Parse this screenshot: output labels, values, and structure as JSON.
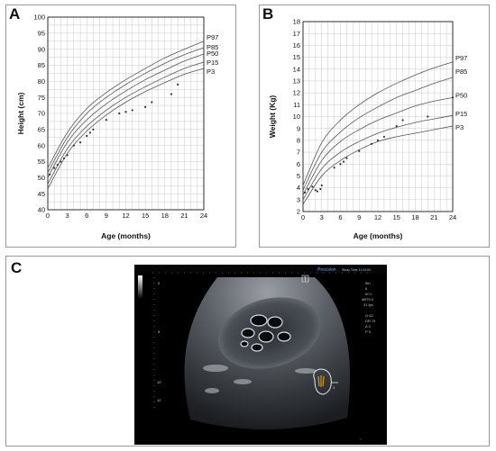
{
  "panels": [
    {
      "letter": "A"
    },
    {
      "letter": "B"
    },
    {
      "letter": "C"
    }
  ],
  "colors": {
    "grid": "#c8c8c8",
    "curve": "#555555",
    "points": "#333333",
    "axis": "#000000",
    "ultrasound_bg": "#000000"
  },
  "chart_data": [
    {
      "type": "line",
      "xlabel": "Age (months)",
      "ylabel": "Height (cm)",
      "xlim": [
        0,
        24
      ],
      "ylim": [
        40,
        100
      ],
      "x_ticks": [
        0,
        3,
        6,
        9,
        12,
        15,
        18,
        21,
        24
      ],
      "y_ticks": [
        40,
        45,
        50,
        55,
        60,
        65,
        70,
        75,
        80,
        85,
        90,
        95,
        100
      ],
      "grid": true,
      "x": [
        0,
        3,
        6,
        9,
        12,
        15,
        18,
        21,
        24
      ],
      "series": [
        {
          "name": "P97",
          "values": [
            53,
            64,
            71.5,
            76.5,
            80.5,
            84,
            87.3,
            90,
            92.5
          ]
        },
        {
          "name": "P85",
          "values": [
            51.5,
            62.5,
            70,
            75,
            79,
            82.5,
            85.6,
            88.3,
            90.5
          ]
        },
        {
          "name": "P50",
          "values": [
            50,
            61,
            68,
            73,
            77,
            80.5,
            83.5,
            86.3,
            88.5
          ]
        },
        {
          "name": "P15",
          "values": [
            48,
            59,
            66,
            71,
            75,
            78.3,
            81.3,
            84,
            86
          ]
        },
        {
          "name": "P3",
          "values": [
            46.5,
            57.5,
            64.5,
            69.5,
            73.5,
            76.8,
            79.6,
            82.2,
            84
          ]
        }
      ],
      "points": {
        "x": [
          0.3,
          1,
          1.5,
          2,
          2.5,
          3,
          4,
          5,
          6,
          6.5,
          7,
          9,
          11,
          12,
          13,
          15,
          16,
          19,
          20
        ],
        "y": [
          51,
          53,
          54,
          55,
          56,
          57,
          60,
          61,
          63,
          64,
          65,
          68,
          70,
          70.5,
          71,
          72,
          73.5,
          76,
          79
        ]
      }
    },
    {
      "type": "line",
      "xlabel": "Age (months)",
      "ylabel": "Weight (Kg)",
      "xlim": [
        0,
        24
      ],
      "ylim": [
        2,
        18
      ],
      "x_ticks": [
        0,
        3,
        6,
        9,
        12,
        15,
        18,
        21,
        24
      ],
      "y_ticks": [
        2,
        3,
        4,
        5,
        6,
        7,
        8,
        9,
        10,
        11,
        12,
        13,
        14,
        15,
        16,
        17,
        18
      ],
      "grid": true,
      "x": [
        0,
        3,
        6,
        9,
        12,
        15,
        18,
        21,
        24
      ],
      "series": [
        {
          "name": "P97",
          "values": [
            4.2,
            7.8,
            9.7,
            11,
            12,
            12.8,
            13.5,
            14.1,
            14.6
          ]
        },
        {
          "name": "P85",
          "values": [
            3.8,
            7,
            8.7,
            9.9,
            10.8,
            11.6,
            12.2,
            12.8,
            13.3
          ]
        },
        {
          "name": "P50",
          "values": [
            3.4,
            6.3,
            7.9,
            8.9,
            9.7,
            10.3,
            10.9,
            11.3,
            11.6
          ]
        },
        {
          "name": "P15",
          "values": [
            3,
            5.6,
            7,
            7.9,
            8.6,
            9.1,
            9.5,
            9.8,
            10.1
          ]
        },
        {
          "name": "P3",
          "values": [
            2.6,
            5,
            6.3,
            7.2,
            7.9,
            8.3,
            8.6,
            8.9,
            9.2
          ]
        }
      ],
      "points": {
        "x": [
          0.3,
          0.8,
          1.5,
          2,
          2.3,
          2.8,
          3,
          5,
          6,
          6.5,
          7,
          9,
          11,
          12,
          13,
          15,
          16,
          20,
          24
        ],
        "y": [
          3.6,
          3.9,
          4.1,
          3.8,
          3.7,
          3.9,
          4.2,
          5.7,
          6,
          6.2,
          6.5,
          7.1,
          7.7,
          8,
          8.3,
          9.2,
          9.7,
          10,
          11.6
        ]
      }
    }
  ],
  "ultrasound": {
    "header_text": "Precision",
    "header_detail": "Study Time 11:24:04",
    "probe_mark": "T",
    "scale_labels": [
      "0",
      "5",
      "10",
      "12"
    ],
    "side_labels": [
      "5th",
      "8",
      "6C1",
      "diff75.0",
      "31 fps",
      "G 62",
      "DR 75",
      "A 3",
      "P 5"
    ],
    "bottom_text": "1",
    "inset_label": "1"
  }
}
